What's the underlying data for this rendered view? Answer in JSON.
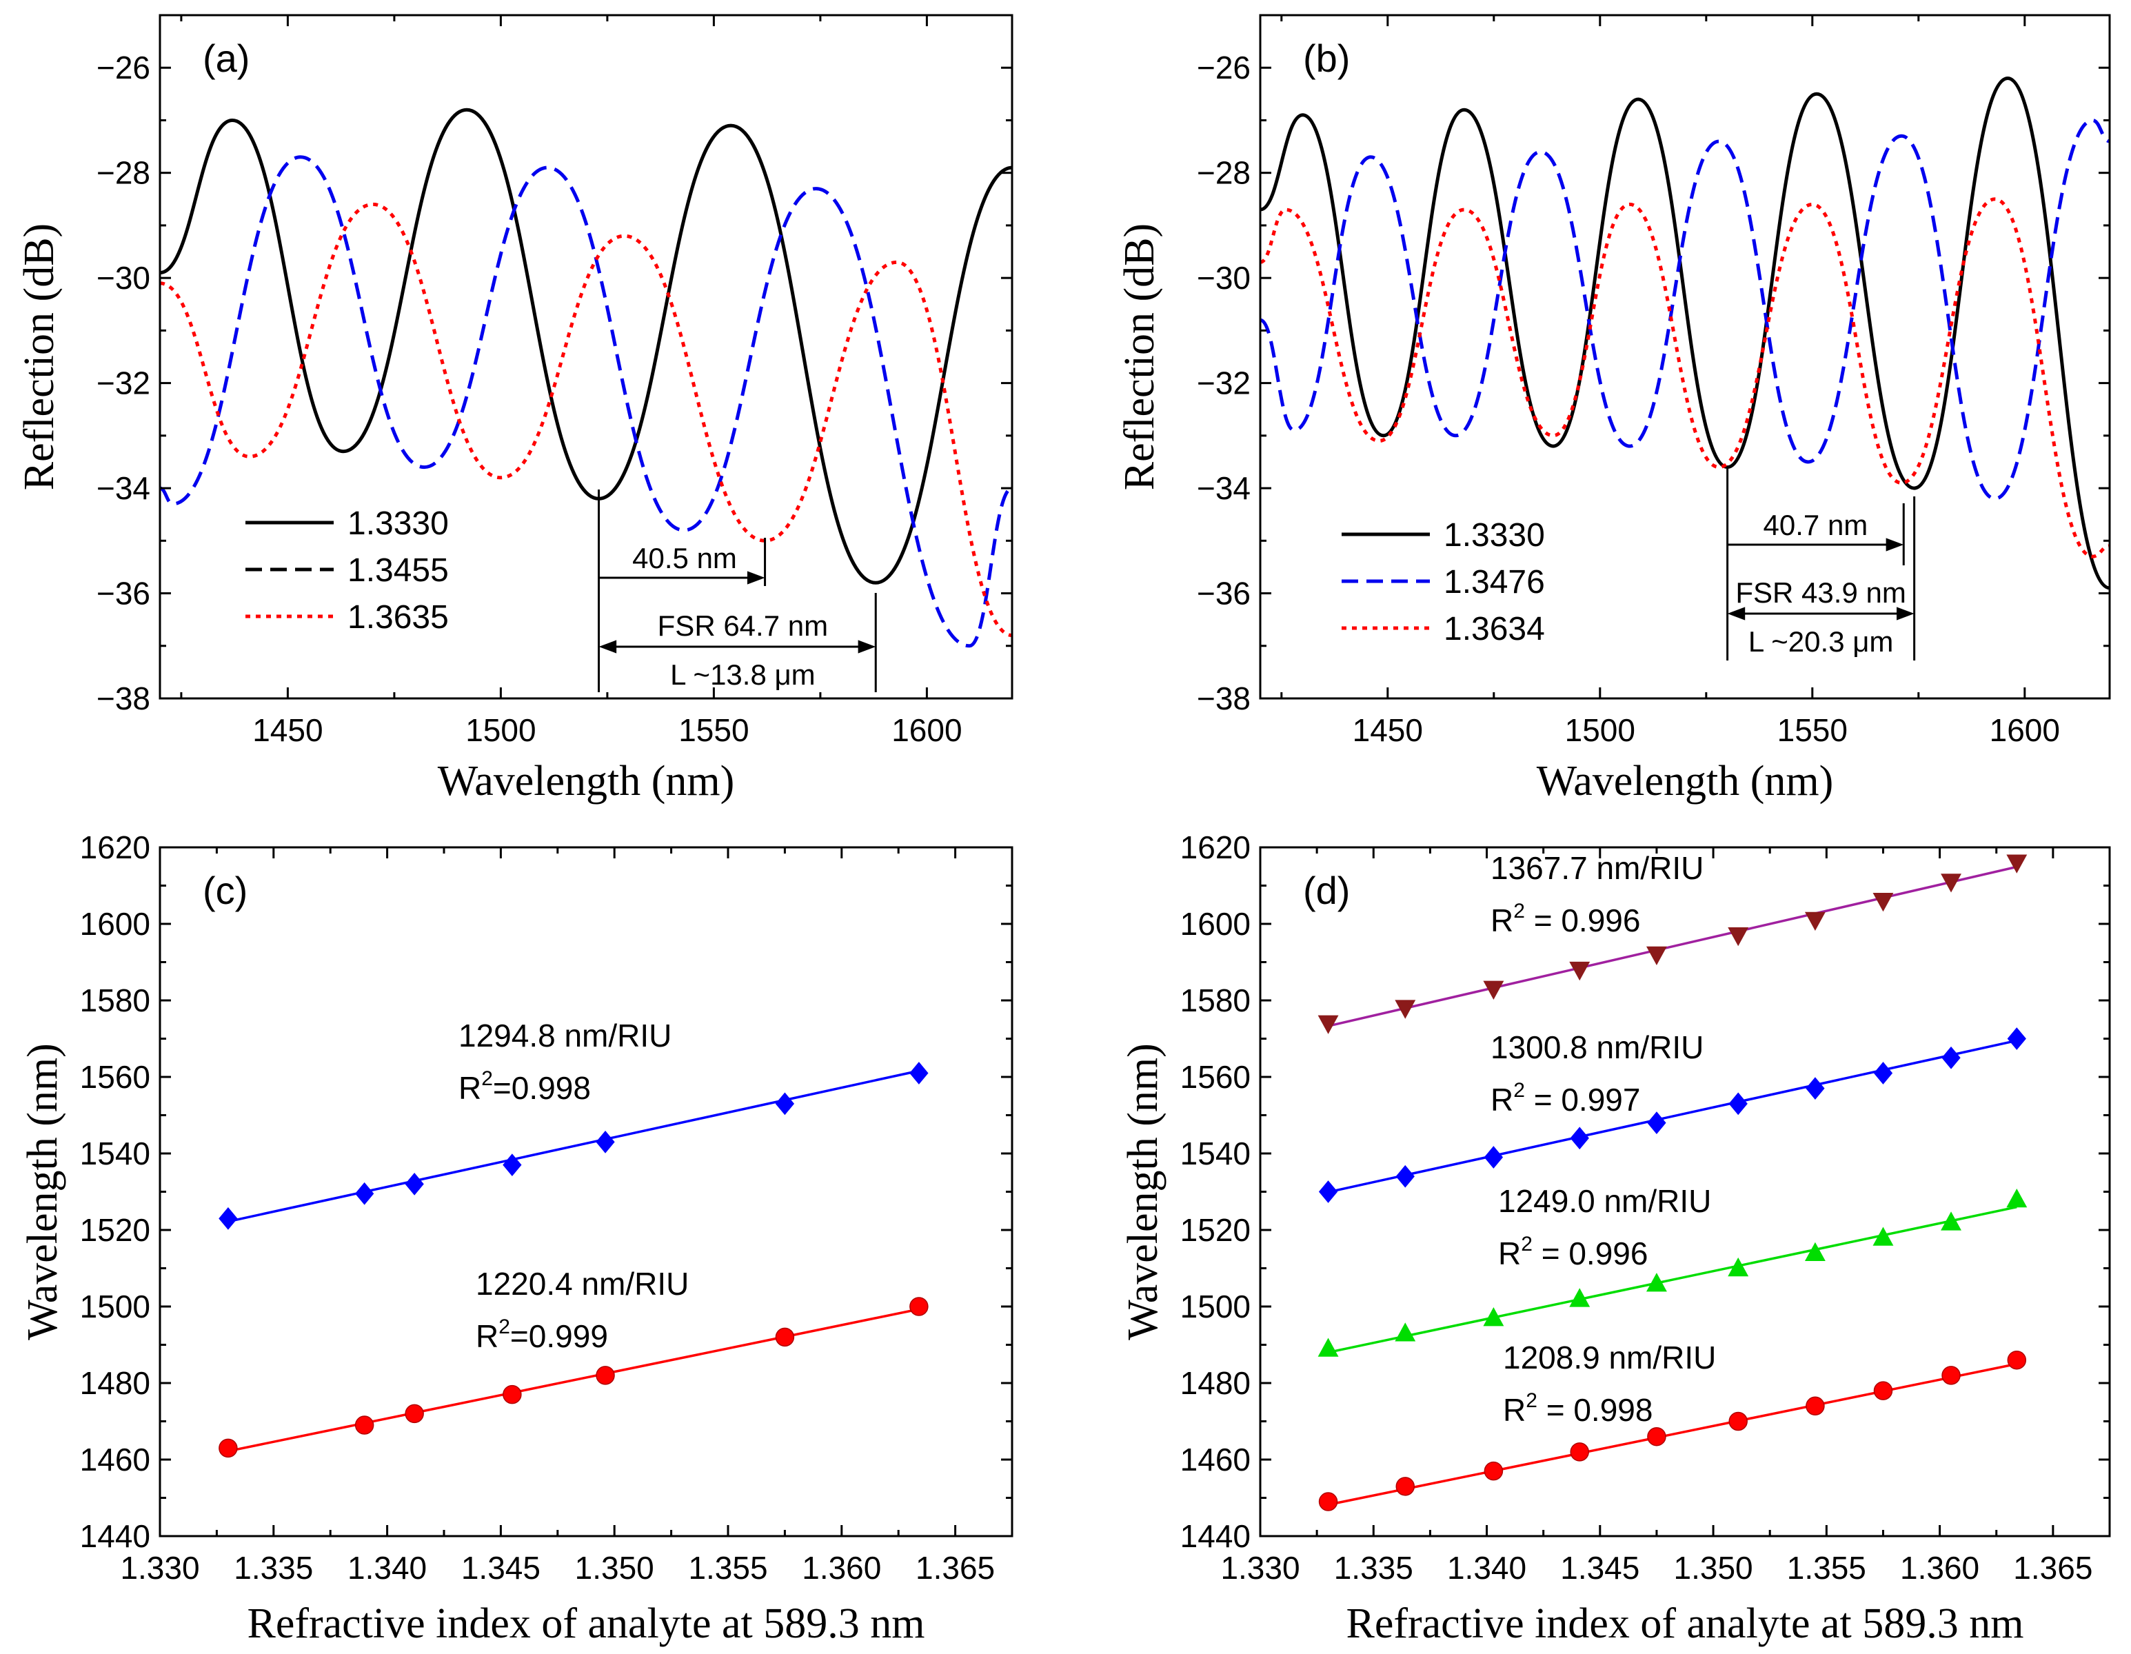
{
  "chart_data": [
    {
      "type": "line",
      "panel": "(a)",
      "xlabel": "Wavelength (nm)",
      "ylabel": "Reflection (dB)",
      "xlim": [
        1420,
        1620
      ],
      "ylim": [
        -38,
        -25
      ],
      "xticks": [
        1450,
        1500,
        1550,
        1600
      ],
      "yticks": [
        -38,
        -36,
        -34,
        -32,
        -30,
        -28,
        -26
      ],
      "series": [
        {
          "name": "1.3330",
          "color": "#000000",
          "dash": "solid",
          "x": [
            1420,
            1437,
            1463,
            1492,
            1523,
            1554,
            1588,
            1620
          ],
          "y": [
            -29.9,
            -27.0,
            -33.3,
            -26.8,
            -34.2,
            -27.1,
            -35.8,
            -27.9
          ]
        },
        {
          "name": "1.3455",
          "color": "#0000ee",
          "dash": "dashed",
          "x": [
            1420,
            1423,
            1453,
            1482,
            1511,
            1543,
            1574,
            1610,
            1620
          ],
          "y": [
            -34.0,
            -34.3,
            -27.7,
            -33.6,
            -27.9,
            -34.8,
            -28.3,
            -37.0,
            -34.0
          ]
        },
        {
          "name": "1.3635",
          "color": "#ff0000",
          "dash": "dotted",
          "x": [
            1420,
            1441,
            1470,
            1500,
            1529,
            1562,
            1593,
            1620
          ],
          "y": [
            -30.1,
            -33.4,
            -28.6,
            -33.8,
            -29.2,
            -35.0,
            -29.7,
            -36.8
          ]
        }
      ],
      "legend_labels": [
        "1.3330",
        "1.3455",
        "1.3635"
      ],
      "annotations": [
        "40.5 nm",
        "FSR 64.7 nm",
        "L ~13.8 μm"
      ]
    },
    {
      "type": "line",
      "panel": "(b)",
      "xlabel": "Wavelength (nm)",
      "ylabel": "Reflection (dB)",
      "xlim": [
        1420,
        1620
      ],
      "ylim": [
        -38,
        -25
      ],
      "xticks": [
        1450,
        1500,
        1550,
        1600
      ],
      "yticks": [
        -38,
        -36,
        -34,
        -32,
        -30,
        -28,
        -26
      ],
      "series": [
        {
          "name": "1.3330",
          "color": "#000000",
          "dash": "solid",
          "x": [
            1420,
            1430,
            1449,
            1468,
            1489,
            1509,
            1530,
            1551,
            1574,
            1596,
            1620
          ],
          "y": [
            -28.7,
            -26.9,
            -33.0,
            -26.8,
            -33.2,
            -26.6,
            -33.6,
            -26.5,
            -34.0,
            -26.2,
            -35.9
          ]
        },
        {
          "name": "1.3476",
          "color": "#0000ee",
          "dash": "dashed",
          "x": [
            1420,
            1428,
            1446,
            1466,
            1486,
            1507,
            1528,
            1549,
            1571,
            1593,
            1616,
            1620
          ],
          "y": [
            -30.8,
            -32.9,
            -27.7,
            -33.0,
            -27.6,
            -33.2,
            -27.4,
            -33.5,
            -27.3,
            -34.2,
            -27.0,
            -27.4
          ]
        },
        {
          "name": "1.3634",
          "color": "#ff0000",
          "dash": "dotted",
          "x": [
            1420,
            1426,
            1448,
            1468,
            1489,
            1507,
            1528,
            1550,
            1571,
            1593,
            1616,
            1620
          ],
          "y": [
            -29.7,
            -28.7,
            -33.1,
            -28.7,
            -33.0,
            -28.6,
            -33.6,
            -28.6,
            -33.9,
            -28.5,
            -35.3,
            -35.1
          ]
        }
      ],
      "legend_labels": [
        "1.3330",
        "1.3476",
        "1.3634"
      ],
      "annotations": [
        "40.7 nm",
        "FSR 43.9 nm",
        "L ~20.3 μm"
      ]
    },
    {
      "type": "scatter",
      "panel": "(c)",
      "xlabel": "Refractive index of analyte at 589.3 nm",
      "ylabel": "Wavelength (nm)",
      "xlim": [
        1.33,
        1.3675
      ],
      "ylim": [
        1440,
        1620
      ],
      "xticks": [
        "1.330",
        "1.335",
        "1.340",
        "1.345",
        "1.350",
        "1.355",
        "1.360",
        "1.365"
      ],
      "yticks": [
        1440,
        1460,
        1480,
        1500,
        1520,
        1540,
        1560,
        1580,
        1600,
        1620
      ],
      "series": [
        {
          "name": "1294.8 nm/RIU",
          "r2": "R2=0.998",
          "color": "#0000ff",
          "marker": "diamond",
          "x": [
            1.333,
            1.339,
            1.3412,
            1.3455,
            1.3496,
            1.3575,
            1.3634
          ],
          "y": [
            1523,
            1529.5,
            1532,
            1537,
            1543,
            1553,
            1561
          ],
          "fit": {
            "x": [
              1.333,
              1.3634
            ],
            "y": [
              1522.2,
              1561.6
            ]
          }
        },
        {
          "name": "1220.4 nm/RIU",
          "r2": "R2=0.999",
          "color": "#ff0000",
          "marker": "circle",
          "x": [
            1.333,
            1.339,
            1.3412,
            1.3455,
            1.3496,
            1.3575,
            1.3634
          ],
          "y": [
            1463,
            1469,
            1472,
            1477,
            1482,
            1492,
            1500
          ],
          "fit": {
            "x": [
              1.333,
              1.3634
            ],
            "y": [
              1462.2,
              1499.3
            ]
          }
        }
      ],
      "text_labels": [
        {
          "slope": "1294.8 nm/RIU",
          "r_sq": "R",
          "sup": "2",
          "r_val": "=0.998"
        },
        {
          "slope": "1220.4 nm/RIU",
          "r_sq": "R",
          "sup": "2",
          "r_val": "=0.999"
        }
      ]
    },
    {
      "type": "scatter",
      "panel": "(d)",
      "xlabel": "Refractive index of analyte at 589.3 nm",
      "ylabel": "Wavelength (nm)",
      "xlim": [
        1.33,
        1.3675
      ],
      "ylim": [
        1440,
        1620
      ],
      "xticks": [
        "1.330",
        "1.335",
        "1.340",
        "1.345",
        "1.350",
        "1.355",
        "1.360",
        "1.365"
      ],
      "yticks": [
        1440,
        1460,
        1480,
        1500,
        1520,
        1540,
        1560,
        1580,
        1600,
        1620
      ],
      "series": [
        {
          "name": "1367.7 nm/RIU",
          "r2": "R2 = 0.996",
          "color": "#8b1a1a",
          "line": "#a0209f",
          "marker": "tri-down",
          "x": [
            1.333,
            1.3364,
            1.3403,
            1.3441,
            1.3475,
            1.3511,
            1.3545,
            1.3575,
            1.3605,
            1.3634
          ],
          "y": [
            1574,
            1578,
            1583,
            1588,
            1592,
            1597,
            1601,
            1606,
            1611,
            1616
          ],
          "fit": {
            "x": [
              1.333,
              1.3634
            ],
            "y": [
              1573.3,
              1614.9
            ]
          }
        },
        {
          "name": "1300.8 nm/RIU",
          "r2": "R2 = 0.997",
          "color": "#0000ff",
          "line": "#0000ff",
          "marker": "diamond",
          "x": [
            1.333,
            1.3364,
            1.3403,
            1.3441,
            1.3475,
            1.3511,
            1.3545,
            1.3575,
            1.3605,
            1.3634
          ],
          "y": [
            1530,
            1534,
            1539,
            1544,
            1548,
            1553,
            1557,
            1561,
            1565,
            1570
          ],
          "fit": {
            "x": [
              1.333,
              1.3634
            ],
            "y": [
              1529.9,
              1569.5
            ]
          }
        },
        {
          "name": "1249.0 nm/RIU",
          "r2": "R2 = 0.996",
          "color": "#00dd00",
          "line": "#00dd00",
          "marker": "tri-up",
          "x": [
            1.333,
            1.3364,
            1.3403,
            1.3441,
            1.3475,
            1.3511,
            1.3545,
            1.3575,
            1.3605,
            1.3634
          ],
          "y": [
            1489,
            1493,
            1497,
            1502,
            1506,
            1510,
            1514,
            1518,
            1522,
            1528
          ],
          "fit": {
            "x": [
              1.333,
              1.3634
            ],
            "y": [
              1488.0,
              1526.0
            ]
          }
        },
        {
          "name": "1208.9 nm/RIU",
          "r2": "R2 = 0.998",
          "color": "#ff0000",
          "line": "#ff0000",
          "marker": "circle",
          "x": [
            1.333,
            1.3364,
            1.3403,
            1.3441,
            1.3475,
            1.3511,
            1.3545,
            1.3575,
            1.3605,
            1.3634
          ],
          "y": [
            1449,
            1453,
            1457,
            1462,
            1466,
            1470,
            1474,
            1478,
            1482,
            1486
          ],
          "fit": {
            "x": [
              1.333,
              1.3634
            ],
            "y": [
              1448.2,
              1485.0
            ]
          }
        }
      ],
      "text_labels": [
        {
          "slope": "1367.7 nm/RIU",
          "r_sq": "R",
          "sup": "2",
          "r_val": " = 0.996"
        },
        {
          "slope": "1300.8 nm/RIU",
          "r_sq": "R",
          "sup": "2",
          "r_val": " = 0.997"
        },
        {
          "slope": "1249.0 nm/RIU",
          "r_sq": "R",
          "sup": "2",
          "r_val": " = 0.996"
        },
        {
          "slope": "1208.9 nm/RIU",
          "r_sq": "R",
          "sup": "2",
          "r_val": " = 0.998"
        }
      ]
    }
  ]
}
